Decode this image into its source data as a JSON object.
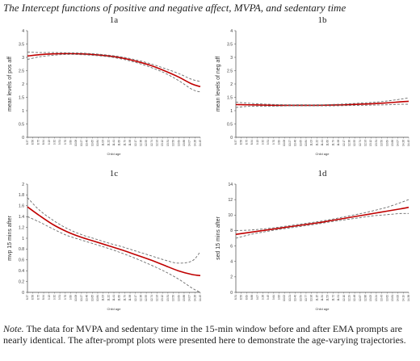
{
  "figure_title": "The Intercept functions of positive and negative affect, MVPA, and sedentary time",
  "note_label": "Note.",
  "note_text": "The data for MVPA and sedentary time in the 15-min window before and after EMA prompts are nearly identical. The after-prompt plots were presented here to demonstrate the age-varying trajectories.",
  "chart_data": [
    {
      "type": "line",
      "panel": "1a",
      "xlabel": "Child age",
      "ylabel": "mean levels of pos aff",
      "ylim": [
        0,
        4
      ],
      "yticks": [
        "0",
        "0.5",
        "1",
        "1.5",
        "2",
        "2.5",
        "3",
        "3.5",
        "4"
      ],
      "xticks": [
        "8.37",
        "8.56",
        "8.75",
        "8.94",
        "9.13",
        "9.32",
        "9.51",
        "9.70",
        "9.89",
        "10.08",
        "10.27",
        "10.46",
        "10.65",
        "10.84",
        "11.03",
        "11.22",
        "11.41",
        "11.60",
        "11.79",
        "11.98",
        "12.17",
        "12.36",
        "12.55",
        "12.74",
        "12.93",
        "13.12",
        "13.31",
        "13.50",
        "13.69",
        "13.88",
        "14.07",
        "14.26",
        "14.45"
      ],
      "x": [
        8.37,
        8.8,
        9.3,
        9.8,
        10.3,
        10.8,
        11.3,
        11.8,
        12.3,
        12.8,
        13.3,
        13.8,
        14.3,
        14.6
      ],
      "series": [
        {
          "role": "estimate",
          "values": [
            3.05,
            3.1,
            3.13,
            3.14,
            3.13,
            3.1,
            3.05,
            2.97,
            2.85,
            2.7,
            2.5,
            2.27,
            2.0,
            1.9
          ]
        },
        {
          "role": "ci_upper",
          "values": [
            3.2,
            3.18,
            3.18,
            3.17,
            3.16,
            3.13,
            3.08,
            3.01,
            2.9,
            2.76,
            2.59,
            2.4,
            2.17,
            2.1
          ]
        },
        {
          "role": "ci_lower",
          "values": [
            2.92,
            3.02,
            3.08,
            3.11,
            3.1,
            3.07,
            3.02,
            2.93,
            2.8,
            2.63,
            2.42,
            2.14,
            1.8,
            1.7
          ]
        }
      ]
    },
    {
      "type": "line",
      "panel": "1b",
      "xlabel": "Child age",
      "ylabel": "mean levels of neg aff",
      "ylim": [
        0,
        4
      ],
      "yticks": [
        "0",
        "0.5",
        "1",
        "1.5",
        "2",
        "2.5",
        "3",
        "3.5",
        "4"
      ],
      "xticks": [
        "8.37",
        "8.56",
        "8.75",
        "8.94",
        "9.13",
        "9.32",
        "9.51",
        "9.70",
        "9.89",
        "10.08",
        "10.27",
        "10.46",
        "10.65",
        "10.84",
        "11.03",
        "11.22",
        "11.41",
        "11.60",
        "11.79",
        "11.98",
        "12.17",
        "12.36",
        "12.55",
        "12.74",
        "12.93",
        "13.12",
        "13.31",
        "13.50",
        "13.69",
        "13.88",
        "14.07",
        "14.26",
        "14.45"
      ],
      "x": [
        8.37,
        8.8,
        9.3,
        9.8,
        10.3,
        10.8,
        11.3,
        11.8,
        12.3,
        12.8,
        13.3,
        13.8,
        14.3,
        14.6
      ],
      "series": [
        {
          "role": "estimate",
          "values": [
            1.23,
            1.22,
            1.21,
            1.2,
            1.2,
            1.2,
            1.2,
            1.21,
            1.22,
            1.24,
            1.26,
            1.29,
            1.33,
            1.35
          ]
        },
        {
          "role": "ci_upper",
          "values": [
            1.32,
            1.28,
            1.25,
            1.23,
            1.22,
            1.22,
            1.22,
            1.23,
            1.25,
            1.28,
            1.31,
            1.36,
            1.43,
            1.48
          ]
        },
        {
          "role": "ci_lower",
          "values": [
            1.12,
            1.16,
            1.17,
            1.17,
            1.18,
            1.18,
            1.18,
            1.18,
            1.19,
            1.2,
            1.21,
            1.22,
            1.24,
            1.24
          ]
        }
      ]
    },
    {
      "type": "line",
      "panel": "1c",
      "xlabel": "Child age",
      "ylabel": "mvp 15 mins after",
      "ylim": [
        0,
        2
      ],
      "yticks": [
        "0",
        "0.2",
        "0.4",
        "0.6",
        "0.8",
        "1",
        "1.2",
        "1.4",
        "1.6",
        "1.8",
        "2"
      ],
      "xticks": [
        "8.37",
        "8.56",
        "8.75",
        "8.94",
        "9.13",
        "9.32",
        "9.51",
        "9.70",
        "9.89",
        "10.08",
        "10.27",
        "10.46",
        "10.65",
        "10.84",
        "11.03",
        "11.22",
        "11.41",
        "11.60",
        "11.79",
        "11.98",
        "12.17",
        "12.36",
        "12.55",
        "12.74",
        "12.93",
        "13.12",
        "13.31",
        "13.50",
        "13.69",
        "13.88",
        "14.07",
        "14.26",
        "14.45"
      ],
      "x": [
        8.37,
        8.8,
        9.3,
        9.8,
        10.3,
        10.8,
        11.3,
        11.8,
        12.3,
        12.8,
        13.3,
        13.8,
        14.3,
        14.6
      ],
      "series": [
        {
          "role": "estimate",
          "values": [
            1.58,
            1.42,
            1.25,
            1.12,
            1.02,
            0.94,
            0.86,
            0.78,
            0.69,
            0.6,
            0.5,
            0.4,
            0.33,
            0.31
          ]
        },
        {
          "role": "ci_upper",
          "values": [
            1.75,
            1.52,
            1.33,
            1.18,
            1.07,
            0.99,
            0.91,
            0.84,
            0.76,
            0.68,
            0.6,
            0.54,
            0.58,
            0.75
          ]
        },
        {
          "role": "ci_lower",
          "values": [
            1.4,
            1.3,
            1.17,
            1.05,
            0.97,
            0.89,
            0.81,
            0.72,
            0.62,
            0.51,
            0.39,
            0.25,
            0.08,
            0.0
          ]
        }
      ]
    },
    {
      "type": "line",
      "panel": "1d",
      "xlabel": "Child age",
      "ylabel": "sed 15 mins after",
      "ylim": [
        0,
        14
      ],
      "yticks": [
        "0",
        "2",
        "4",
        "6",
        "8",
        "10",
        "12",
        "14"
      ],
      "xticks": [
        "8.31",
        "8.50",
        "8.69",
        "8.88",
        "9.07",
        "9.26",
        "9.45",
        "9.64",
        "9.83",
        "10.02",
        "10.21",
        "10.40",
        "10.59",
        "10.77",
        "10.96",
        "11.15",
        "11.34",
        "11.53",
        "11.72",
        "11.91",
        "12.10",
        "12.29",
        "12.48",
        "12.67",
        "12.86",
        "13.05",
        "13.24",
        "13.43",
        "13.62",
        "13.81",
        "14.00",
        "14.19",
        "14.38"
      ],
      "x": [
        8.31,
        8.8,
        9.3,
        9.8,
        10.3,
        10.8,
        11.3,
        11.8,
        12.3,
        12.8,
        13.3,
        13.8,
        14.3,
        14.6
      ],
      "series": [
        {
          "role": "estimate",
          "values": [
            7.5,
            7.75,
            8.0,
            8.25,
            8.5,
            8.75,
            9.0,
            9.3,
            9.6,
            9.9,
            10.2,
            10.5,
            10.8,
            11.0
          ]
        },
        {
          "role": "ci_upper",
          "values": [
            8.0,
            8.05,
            8.2,
            8.4,
            8.65,
            8.9,
            9.15,
            9.45,
            9.8,
            10.15,
            10.55,
            11.0,
            11.6,
            12.0
          ]
        },
        {
          "role": "ci_lower",
          "values": [
            7.0,
            7.45,
            7.8,
            8.1,
            8.35,
            8.6,
            8.85,
            9.15,
            9.4,
            9.65,
            9.9,
            10.05,
            10.2,
            10.2
          ]
        }
      ]
    }
  ]
}
